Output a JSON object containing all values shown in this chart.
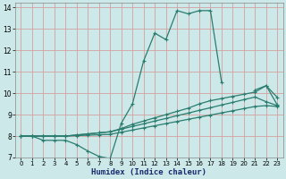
{
  "xlabel": "Humidex (Indice chaleur)",
  "bg_color": "#cce8e8",
  "line_color": "#2a7d6e",
  "grid_color": "#d4a0a0",
  "xlim": [
    -0.5,
    23.5
  ],
  "ylim": [
    7,
    14.2
  ],
  "xticks": [
    0,
    1,
    2,
    3,
    4,
    5,
    6,
    7,
    8,
    9,
    10,
    11,
    12,
    13,
    14,
    15,
    16,
    17,
    18,
    19,
    20,
    21,
    22,
    23
  ],
  "yticks": [
    7,
    8,
    9,
    10,
    11,
    12,
    13,
    14
  ],
  "series": [
    {
      "x": [
        0,
        1,
        2,
        3,
        4,
        5,
        6,
        7,
        8,
        9,
        10,
        11,
        12,
        13,
        14,
        15,
        16,
        17,
        18,
        19,
        20,
        21,
        22,
        23
      ],
      "y": [
        8.0,
        8.0,
        7.8,
        7.8,
        7.8,
        7.6,
        7.3,
        7.05,
        6.95,
        8.6,
        9.5,
        11.5,
        12.8,
        12.5,
        13.85,
        13.7,
        13.85,
        13.85,
        10.5,
        null,
        null,
        10.15,
        10.35,
        9.8
      ]
    },
    {
      "x": [
        0,
        1,
        2,
        3,
        4,
        5,
        6,
        7,
        8,
        9,
        10,
        11,
        12,
        13,
        14,
        15,
        16,
        17,
        18,
        19,
        20,
        21,
        22,
        23
      ],
      "y": [
        8.0,
        8.0,
        8.0,
        8.0,
        8.0,
        8.05,
        8.1,
        8.15,
        8.2,
        8.35,
        8.55,
        8.7,
        8.85,
        9.0,
        9.15,
        9.3,
        9.5,
        9.65,
        9.75,
        9.85,
        9.95,
        10.05,
        10.35,
        9.45
      ]
    },
    {
      "x": [
        0,
        1,
        2,
        3,
        4,
        5,
        6,
        7,
        8,
        9,
        10,
        11,
        12,
        13,
        14,
        15,
        16,
        17,
        18,
        19,
        20,
        21,
        22,
        23
      ],
      "y": [
        8.0,
        8.0,
        8.0,
        8.0,
        8.0,
        8.05,
        8.1,
        8.15,
        8.2,
        8.32,
        8.45,
        8.57,
        8.7,
        8.82,
        8.95,
        9.07,
        9.2,
        9.32,
        9.45,
        9.57,
        9.7,
        9.82,
        9.6,
        9.42
      ]
    },
    {
      "x": [
        0,
        1,
        2,
        3,
        4,
        5,
        6,
        7,
        8,
        9,
        10,
        11,
        12,
        13,
        14,
        15,
        16,
        17,
        18,
        19,
        20,
        21,
        22,
        23
      ],
      "y": [
        8.0,
        8.0,
        8.0,
        8.0,
        8.0,
        8.02,
        8.04,
        8.06,
        8.08,
        8.18,
        8.28,
        8.38,
        8.48,
        8.58,
        8.68,
        8.78,
        8.88,
        8.98,
        9.08,
        9.18,
        9.28,
        9.38,
        9.42,
        9.38
      ]
    }
  ]
}
